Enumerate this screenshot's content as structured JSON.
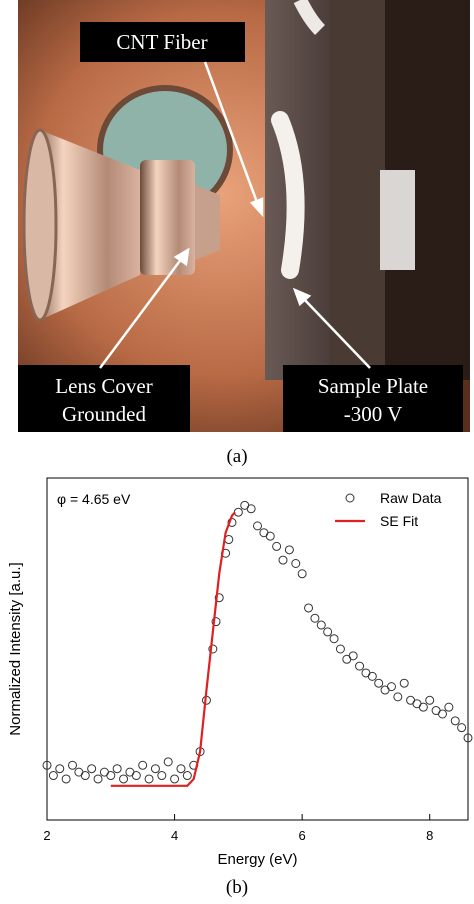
{
  "figure_a": {
    "labels": {
      "fiber": "CNT Fiber",
      "lens": [
        "Lens Cover",
        "Grounded"
      ],
      "plate": [
        "Sample Plate",
        "-300 V"
      ]
    },
    "caption": "(a)"
  },
  "chart_data": {
    "type": "scatter",
    "caption": "(b)",
    "annotation": "φ = 4.65 eV",
    "x_label": "Energy (eV)",
    "y_label": "Normalized Intensity [a.u.]",
    "xlim": [
      2,
      8.6
    ],
    "xticks": [
      2,
      4,
      6,
      8
    ],
    "ylim": [
      0,
      1
    ],
    "legend": "upper right",
    "series": [
      {
        "name": "Raw Data",
        "kind": "scatter",
        "color": "#333333",
        "x": [
          2.0,
          2.1,
          2.2,
          2.3,
          2.4,
          2.5,
          2.6,
          2.7,
          2.8,
          2.9,
          3.0,
          3.1,
          3.2,
          3.3,
          3.4,
          3.5,
          3.6,
          3.7,
          3.8,
          3.9,
          4.0,
          4.1,
          4.2,
          4.3,
          4.4,
          4.5,
          4.6,
          4.65,
          4.7,
          4.8,
          4.85,
          4.9,
          5.0,
          5.1,
          5.2,
          5.3,
          5.4,
          5.5,
          5.6,
          5.7,
          5.8,
          5.9,
          6.0,
          6.1,
          6.2,
          6.3,
          6.4,
          6.5,
          6.6,
          6.7,
          6.8,
          6.9,
          7.0,
          7.1,
          7.2,
          7.3,
          7.4,
          7.5,
          7.6,
          7.7,
          7.8,
          7.9,
          8.0,
          8.1,
          8.2,
          8.3,
          8.4,
          8.5,
          8.6
        ],
        "values": [
          0.16,
          0.13,
          0.15,
          0.12,
          0.16,
          0.14,
          0.13,
          0.15,
          0.12,
          0.14,
          0.13,
          0.15,
          0.12,
          0.14,
          0.13,
          0.16,
          0.12,
          0.15,
          0.13,
          0.17,
          0.12,
          0.15,
          0.13,
          0.16,
          0.2,
          0.35,
          0.5,
          0.58,
          0.65,
          0.78,
          0.82,
          0.87,
          0.9,
          0.92,
          0.91,
          0.86,
          0.84,
          0.83,
          0.8,
          0.76,
          0.79,
          0.75,
          0.72,
          0.62,
          0.59,
          0.57,
          0.55,
          0.53,
          0.5,
          0.47,
          0.48,
          0.45,
          0.43,
          0.42,
          0.4,
          0.38,
          0.39,
          0.36,
          0.4,
          0.35,
          0.34,
          0.33,
          0.35,
          0.32,
          0.31,
          0.33,
          0.29,
          0.27,
          0.24
        ]
      },
      {
        "name": "SE Fit",
        "kind": "line",
        "color": "#e02020",
        "x": [
          3.0,
          4.2,
          4.3,
          4.4,
          4.5,
          4.6,
          4.7,
          4.8,
          4.9,
          4.95
        ],
        "values": [
          0.1,
          0.1,
          0.12,
          0.2,
          0.38,
          0.55,
          0.72,
          0.84,
          0.89,
          0.9
        ]
      }
    ]
  }
}
